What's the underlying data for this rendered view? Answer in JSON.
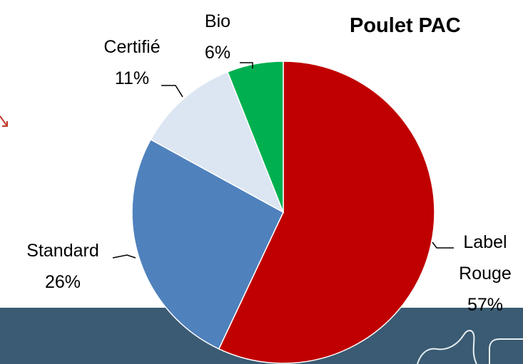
{
  "chart_data": {
    "type": "pie",
    "title": "Poulet PAC",
    "categories": [
      "Label Rouge",
      "Standard",
      "Certifié",
      "Bio"
    ],
    "values": [
      57,
      26,
      11,
      6
    ],
    "value_labels": [
      "57%",
      "26%",
      "11%",
      "6%"
    ],
    "colors": [
      "#c00000",
      "#4f81bd",
      "#dce6f2",
      "#00b050"
    ]
  }
}
